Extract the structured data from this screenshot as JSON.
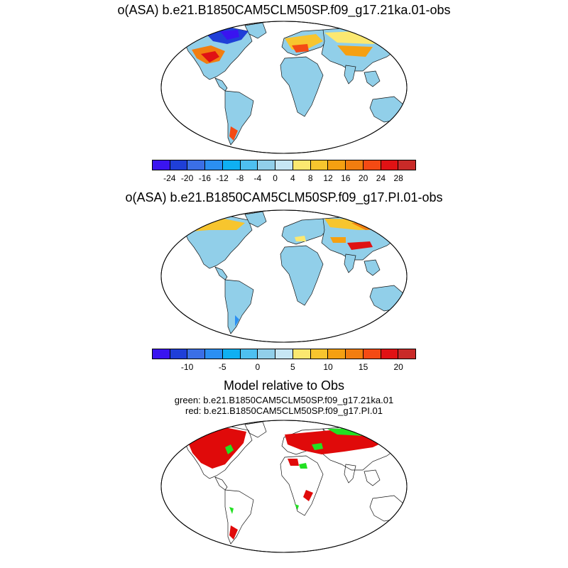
{
  "panels": [
    {
      "title": "o(ASA) b.e21.B1850CAM5CLM50SP.f09_g17.21ka.01-obs",
      "colorbar": {
        "colors": [
          "#3a14f0",
          "#1f3fd8",
          "#3b6fe6",
          "#2b8ff2",
          "#0fb0f2",
          "#4ec0f0",
          "#91cfe9",
          "#c6e6f4",
          "#fbe870",
          "#f7c52e",
          "#f5a011",
          "#f27d0f",
          "#f44a14",
          "#e01214",
          "#c92a28"
        ],
        "labels": [
          "-24",
          "-20",
          "-16",
          "-12",
          "-8",
          "-4",
          "0",
          "4",
          "8",
          "12",
          "16",
          "20",
          "24",
          "28"
        ]
      }
    },
    {
      "title": "o(ASA) b.e21.B1850CAM5CLM50SP.f09_g17.PI.01-obs",
      "colorbar": {
        "colors": [
          "#3a14f0",
          "#1f3fd8",
          "#3b6fe6",
          "#2b8ff2",
          "#0fb0f2",
          "#4ec0f0",
          "#91cfe9",
          "#c6e6f4",
          "#fbe870",
          "#f7c52e",
          "#f5a011",
          "#f27d0f",
          "#f44a14",
          "#e01214",
          "#c92a28"
        ],
        "labels": [
          "-10",
          "-5",
          "0",
          "5",
          "10",
          "15",
          "20"
        ]
      }
    },
    {
      "title": "Model relative to Obs",
      "legend": [
        "green: b.e21.B1850CAM5CLM50SP.f09_g17.21ka.01",
        "red: b.e21.B1850CAM5CLM50SP.f09_g17.PI.01"
      ],
      "colors": {
        "green": "#22e022",
        "red": "#e00a0a"
      }
    }
  ],
  "map_colors": {
    "ocean": "#ffffff",
    "coast": "#111111",
    "land_neutral": "#91cfe9",
    "land_light": "#c6e6f4",
    "land_blue": "#4ec0f0",
    "warm": "#f7c52e",
    "orange": "#f27d0f",
    "red": "#e01214",
    "deep_blue": "#1f3fd8"
  }
}
